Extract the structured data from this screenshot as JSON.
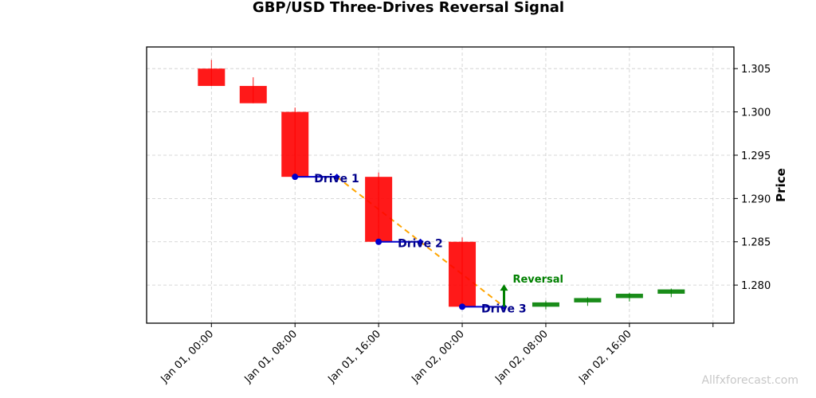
{
  "chart_data": {
    "type": "candlestick",
    "title": "GBP/USD Three-Drives Reversal Signal",
    "ylabel": "Price",
    "xlabel": "",
    "ylim": [
      1.2756,
      1.3075
    ],
    "y_axis_side": "right",
    "yticks": [
      1.28,
      1.285,
      1.29,
      1.295,
      1.3,
      1.305
    ],
    "ytick_labels": [
      "1.280",
      "1.285",
      "1.290",
      "1.295",
      "1.300",
      "1.305"
    ],
    "xticks": [
      {
        "label": "Jan 01, 00:00",
        "hour": 0
      },
      {
        "label": "Jan 01, 08:00",
        "hour": 8
      },
      {
        "label": "Jan 01, 16:00",
        "hour": 16
      },
      {
        "label": "Jan 02, 00:00",
        "hour": 24
      },
      {
        "label": "Jan 02, 08:00",
        "hour": 32
      },
      {
        "label": "Jan 02, 16:00",
        "hour": 40
      },
      {
        "label": "",
        "hour": 48
      }
    ],
    "xlim_hours": [
      -6.2,
      50
    ],
    "grid": true,
    "candles": [
      {
        "time": "Jan 01, 00:00",
        "hour": 0,
        "open": 1.305,
        "high": 1.306,
        "low": 1.303,
        "close": 1.303
      },
      {
        "time": "Jan 01, 04:00",
        "hour": 4,
        "open": 1.303,
        "high": 1.304,
        "low": 1.301,
        "close": 1.301
      },
      {
        "time": "Jan 01, 08:00",
        "hour": 8,
        "open": 1.3,
        "high": 1.3005,
        "low": 1.2925,
        "close": 1.2925
      },
      {
        "time": "Jan 01, 16:00",
        "hour": 16,
        "open": 1.2925,
        "high": 1.293,
        "low": 1.285,
        "close": 1.285
      },
      {
        "time": "Jan 02, 00:00",
        "hour": 24,
        "open": 1.285,
        "high": 1.2855,
        "low": 1.2775,
        "close": 1.2775
      },
      {
        "time": "Jan 02, 08:00",
        "hour": 32,
        "open": 1.2775,
        "high": 1.2782,
        "low": 1.2772,
        "close": 1.278
      },
      {
        "time": "Jan 02, 12:00",
        "hour": 36,
        "open": 1.278,
        "high": 1.2786,
        "low": 1.2776,
        "close": 1.2785
      },
      {
        "time": "Jan 02, 16:00",
        "hour": 40,
        "open": 1.2785,
        "high": 1.2791,
        "low": 1.2781,
        "close": 1.279
      },
      {
        "time": "Jan 02, 20:00",
        "hour": 44,
        "open": 1.279,
        "high": 1.2796,
        "low": 1.2786,
        "close": 1.2795
      }
    ],
    "drives": [
      {
        "label": "Drive 1",
        "start_hour": 8,
        "end_hour": 12,
        "price": 1.2925
      },
      {
        "label": "Drive 2",
        "start_hour": 16,
        "end_hour": 20,
        "price": 1.285
      },
      {
        "label": "Drive 3",
        "start_hour": 24,
        "end_hour": 28,
        "price": 1.2775
      }
    ],
    "trend_line": [
      {
        "hour": 12,
        "price": 1.2925
      },
      {
        "hour": 28,
        "price": 1.2775
      }
    ],
    "reversal": {
      "label": "Reversal",
      "hour": 28,
      "price": 1.2775,
      "arrow_to_price": 1.28
    },
    "colors": {
      "bearish": "#ff0000",
      "bullish": "#008000",
      "drive": "#0000cd",
      "drive_label": "#00008b",
      "trend": "#ffa500",
      "reversal": "#008000"
    }
  },
  "watermark": "Allfxforecast.com"
}
